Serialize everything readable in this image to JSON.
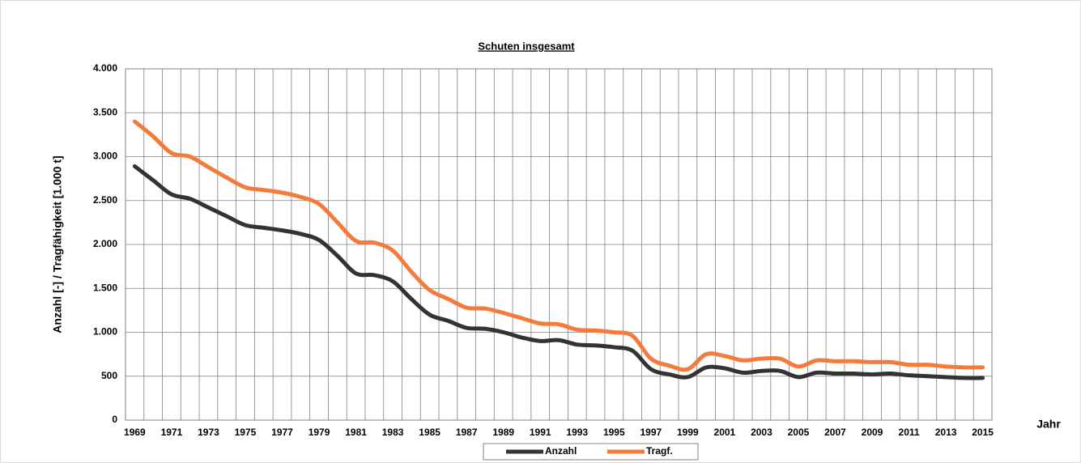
{
  "chart_data": {
    "type": "line",
    "title": "Schuten insgesamt",
    "y_label": "Anzahl [-] / Tragfähigkeit [1.000 t]",
    "x_label": "Jahr",
    "categories": [
      "1969",
      null,
      "1971",
      null,
      "1973",
      null,
      "1975",
      null,
      "1977",
      null,
      "1979",
      null,
      "1981",
      null,
      "1983",
      null,
      "1985",
      null,
      "1987",
      null,
      "1989",
      null,
      "1991",
      null,
      "1993",
      null,
      "1995",
      null,
      "1997",
      null,
      "1999",
      null,
      "2001",
      null,
      "2003",
      null,
      "2005",
      null,
      "2007",
      null,
      "2009",
      null,
      "2011",
      null,
      "2013",
      null,
      "2015"
    ],
    "series": [
      {
        "name": "Anzahl",
        "color": "#333333",
        "values": [
          2890,
          2730,
          2570,
          2520,
          2420,
          2320,
          2220,
          2190,
          2160,
          2120,
          2050,
          1870,
          1670,
          1650,
          1580,
          1380,
          1200,
          1130,
          1050,
          1040,
          1000,
          940,
          900,
          910,
          860,
          850,
          830,
          790,
          580,
          520,
          490,
          600,
          590,
          540,
          560,
          560,
          490,
          540,
          530,
          530,
          520,
          530,
          510,
          500,
          490,
          480,
          480
        ]
      },
      {
        "name": "Tragf.",
        "color": "#f47b3c",
        "values": [
          3400,
          3230,
          3040,
          3000,
          2880,
          2760,
          2650,
          2620,
          2590,
          2540,
          2460,
          2250,
          2040,
          2020,
          1930,
          1690,
          1480,
          1380,
          1280,
          1270,
          1220,
          1160,
          1100,
          1090,
          1030,
          1020,
          1000,
          960,
          700,
          620,
          580,
          750,
          730,
          680,
          700,
          700,
          610,
          680,
          670,
          670,
          660,
          660,
          630,
          630,
          610,
          600,
          600
        ]
      }
    ],
    "ylim": [
      0,
      4000
    ],
    "yticks": [
      0,
      500,
      {
        "value": 1000,
        "label": "1.000"
      },
      {
        "value": 1500,
        "label": "1.500"
      },
      {
        "value": 2000,
        "label": "2.000"
      },
      {
        "value": 2500,
        "label": "2.500"
      },
      {
        "value": 3000,
        "label": "3.000"
      },
      {
        "value": 3500,
        "label": "3.500"
      },
      {
        "value": 4000,
        "label": "4.000"
      }
    ],
    "grid": true,
    "legend": "bottom"
  }
}
